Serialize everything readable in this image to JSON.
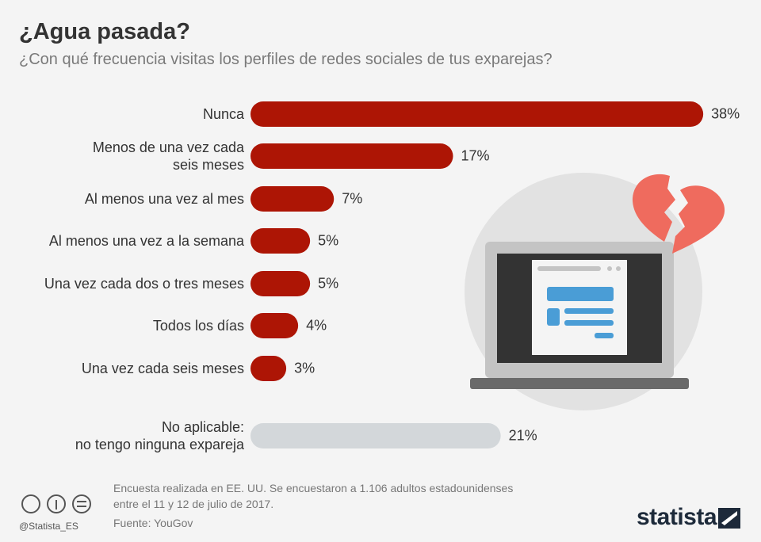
{
  "title": "¿Agua pasada?",
  "subtitle": "¿Con qué frecuencia visitas los perfiles de redes sociales de tus exparejas?",
  "chart_data": {
    "type": "bar",
    "orientation": "horizontal",
    "categories": [
      "Nunca",
      "Menos de una vez cada\nseis meses",
      "Al menos una vez al mes",
      "Al menos una vez a la semana",
      "Una vez cada dos o tres meses",
      "Todos los días",
      "Una vez cada seis meses",
      "No aplicable:\nno tengo ninguna expareja"
    ],
    "values": [
      38,
      17,
      7,
      5,
      5,
      4,
      3,
      21
    ],
    "value_labels": [
      "38%",
      "17%",
      "7%",
      "5%",
      "5%",
      "4%",
      "3%",
      "21%"
    ],
    "colors": [
      "#ad1505",
      "#ad1505",
      "#ad1505",
      "#ad1505",
      "#ad1505",
      "#ad1505",
      "#ad1505",
      "#d3d7da"
    ]
  },
  "footer": {
    "note": "Encuesta realizada en EE. UU. Se encuestaron a 1.106 adultos estadounidenses\nentre el 11 y 12 de julio de 2017.",
    "source": "Fuente: YouGov",
    "credit": "@Statista_ES",
    "brand": "statista"
  }
}
